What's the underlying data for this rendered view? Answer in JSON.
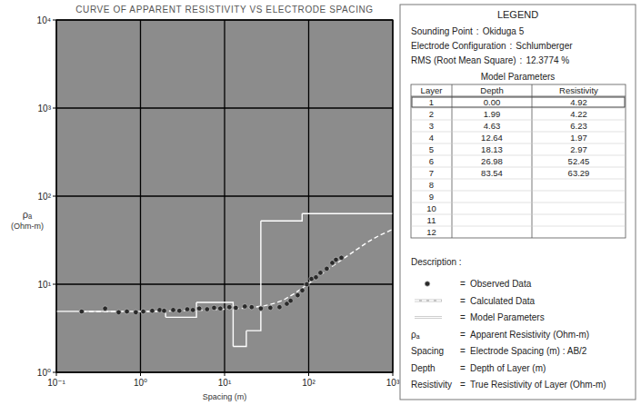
{
  "chart_data": {
    "type": "scatter",
    "title": "CURVE OF APPARENT RESISTIVITY VS ELECTRODE SPACING",
    "xlabel": "Spacing (m)",
    "ylabel": [
      "ρₐ",
      "(Ohm-m)"
    ],
    "log": true,
    "grid": true,
    "legend": "right",
    "xlim": [
      0.1,
      1000
    ],
    "ylim": [
      1,
      10000
    ],
    "xticks": [
      {
        "value": 0.1,
        "label": "10⁻¹"
      },
      {
        "value": 1,
        "label": "10⁰"
      },
      {
        "value": 10,
        "label": "10¹"
      },
      {
        "value": 100,
        "label": "10²"
      },
      {
        "value": 1000,
        "label": "10³"
      }
    ],
    "yticks": [
      {
        "value": 1,
        "label": "10⁰"
      },
      {
        "value": 10,
        "label": "10¹"
      },
      {
        "value": 100,
        "label": "10²"
      },
      {
        "value": 1000,
        "label": "10³"
      },
      {
        "value": 10000,
        "label": "10⁴"
      }
    ],
    "series": [
      {
        "name": "Observed Data",
        "type": "scatter",
        "marker": "circle",
        "color": "#2a2a2a",
        "x": [
          0.2,
          0.38,
          0.55,
          0.69,
          0.88,
          1.08,
          1.38,
          1.69,
          1.91,
          2.45,
          2.9,
          3.6,
          4.2,
          5.0,
          6.2,
          7.5,
          8.9,
          11.4,
          13.6,
          17.4,
          21,
          27,
          35,
          45,
          55,
          61,
          74,
          84,
          95,
          108,
          122,
          138,
          164,
          191,
          211,
          245
        ],
        "values": [
          4.9,
          5.3,
          4.8,
          4.9,
          4.8,
          4.9,
          5.0,
          5.1,
          5.0,
          5.1,
          5.0,
          5.2,
          5.1,
          5.3,
          5.2,
          5.4,
          5.3,
          5.5,
          5.4,
          5.6,
          5.5,
          5.3,
          5.4,
          5.5,
          6.0,
          6.5,
          7.5,
          8.5,
          10,
          11.5,
          12,
          13.5,
          15,
          17.5,
          19,
          20
        ]
      },
      {
        "name": "Calculated Data",
        "type": "line",
        "line_style": "dashed",
        "color": "#ffffff",
        "x": [
          0.2,
          0.5,
          1,
          2,
          5,
          10,
          20,
          30,
          40,
          50,
          70,
          100,
          150,
          200,
          300,
          500,
          700,
          1000
        ],
        "values": [
          4.9,
          4.9,
          4.9,
          4.95,
          5.05,
          5.2,
          5.4,
          5.7,
          6.1,
          6.6,
          8.0,
          10.2,
          13.5,
          16.5,
          21.5,
          30,
          36,
          42
        ]
      },
      {
        "name": "Model Parameters",
        "type": "step",
        "line_style": "solid",
        "color": "#ffffff",
        "x": [
          0,
          1.99,
          4.63,
          12.64,
          18.13,
          26.98,
          83.54
        ],
        "x_labels": [
          "0.00",
          "1.99",
          "4.63",
          "12.64",
          "18.13",
          "26.98",
          "83.54"
        ],
        "values": [
          4.92,
          4.22,
          6.23,
          1.97,
          2.97,
          52.45,
          63.29
        ]
      }
    ]
  },
  "legend_panel": {
    "title": "LEGEND",
    "separator": ":",
    "info": [
      {
        "label": "Sounding Point",
        "value": "Okiduga 5"
      },
      {
        "label": "Electrode Configuration",
        "value": "Schlumberger"
      },
      {
        "label": "RMS (Root Mean Square)",
        "value": "12.3774 %"
      }
    ],
    "model_title": "Model Parameters",
    "table": {
      "headers": [
        "Layer",
        "Depth",
        "Resistivity"
      ],
      "layers": [
        1,
        2,
        3,
        4,
        5,
        6,
        7,
        8,
        9,
        10,
        11,
        12
      ]
    },
    "description": {
      "title": "Description :",
      "separator": "=",
      "items": [
        {
          "key": "ρₐ",
          "text": "Apparent Resistivity (Ohm-m)"
        },
        {
          "key": "Spacing",
          "text": "Electrode Spacing (m) : AB/2"
        },
        {
          "key": "Depth",
          "text": "Depth of Layer (m)"
        },
        {
          "key": "Resistivity",
          "text": "True Resistivity of Layer (Ohm-m)"
        }
      ]
    }
  }
}
